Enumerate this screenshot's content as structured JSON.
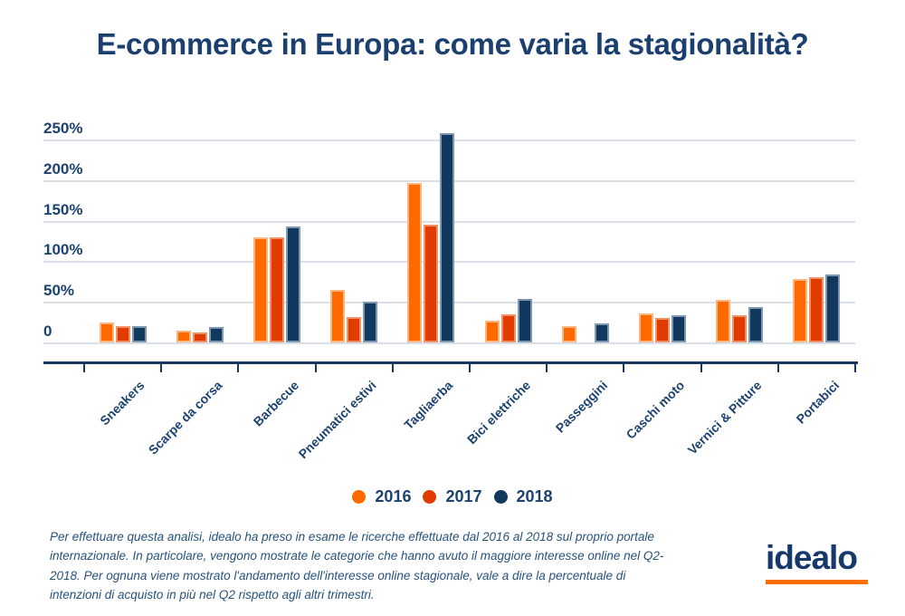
{
  "chart_data": {
    "type": "bar",
    "title": "E-commerce in Europa: come varia la stagionalità?",
    "categories": [
      "Sneakers",
      "Scarpe da corsa",
      "Barbecue",
      "Pneumatici estivi",
      "Tagliaerba",
      "Bici elettriche",
      "Passeggini",
      "Caschi moto",
      "Vernici & Pitture",
      "Portabici"
    ],
    "series": [
      {
        "name": "2016",
        "color": "#FF6A00",
        "values": [
          25,
          15,
          130,
          65,
          196,
          27,
          20,
          36,
          52,
          78
        ]
      },
      {
        "name": "2017",
        "color": "#E03C00",
        "values": [
          20,
          12,
          129,
          31,
          145,
          35,
          0,
          30,
          33,
          80
        ]
      },
      {
        "name": "2018",
        "color": "#11395E",
        "values": [
          20,
          19,
          143,
          50,
          258,
          54,
          23,
          34,
          44,
          84
        ]
      }
    ],
    "xlabel": "",
    "ylabel": "",
    "ylim": [
      0,
      250
    ],
    "ytick_labels": [
      "0",
      "50%",
      "100%",
      "150%",
      "200%",
      "250%"
    ],
    "ytick_values": [
      0,
      50,
      100,
      150,
      200,
      250
    ],
    "grid": true,
    "legend_position": "bottom-center",
    "unit": "percent"
  },
  "footnote": "Per effettuare questa analisi, idealo ha preso in esame le ricerche effettuate dal 2016 al 2018 sul proprio portale internazionale. In particolare, vengono mostrate le categorie che hanno avuto il maggiore interesse online nel Q2-2018. Per ognuna viene mostrato l'andamento dell'interesse online stagionale, vale a dire la percentuale di intenzioni di acquisto in più nel Q2 rispetto agli altri trimestri.",
  "logo": {
    "text": "idealo",
    "accent_color": "#FF6F00"
  },
  "colors": {
    "title_navy": "#1B406F",
    "axis_navy": "#17395F",
    "gridline": "#DBE0E8",
    "bar_2016": "#FF6A00",
    "bar_2017": "#E03C00",
    "bar_2018": "#11395E",
    "logo_accent": "#FF6F00"
  }
}
